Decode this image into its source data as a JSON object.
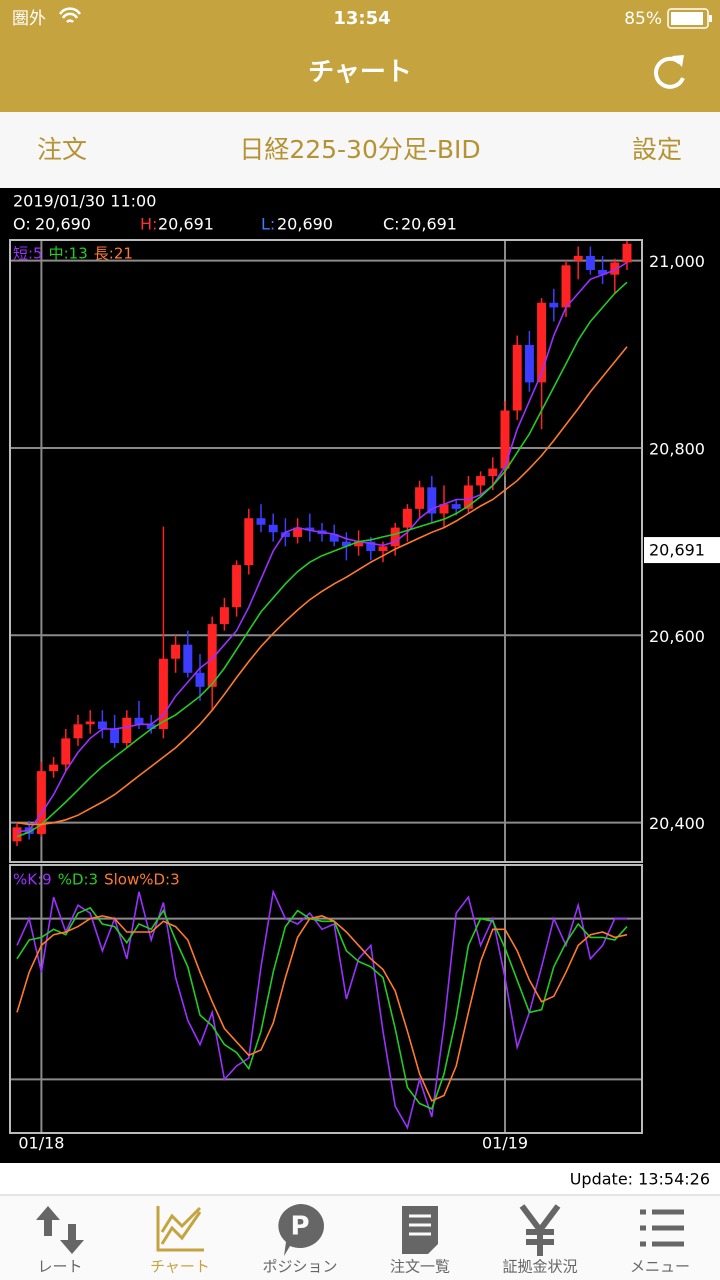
{
  "status_bar": {
    "carrier": "圏外",
    "time": "13:54",
    "battery": "85%"
  },
  "nav": {
    "title": "チャート"
  },
  "header": {
    "left": "注文",
    "title": "日経225-30分足-BID",
    "right": "設定"
  },
  "info": {
    "datetime": "2019/01/30 11:00",
    "open": {
      "label": "O:",
      "value": "20,690"
    },
    "high": {
      "label": "H:",
      "value": "20,691"
    },
    "low": {
      "label": "L:",
      "value": "20,690"
    },
    "close": {
      "label": "C:",
      "value": "20,691"
    }
  },
  "chart_data": [
    {
      "type": "candlestick",
      "categories": [
        null,
        null,
        "01/18",
        null,
        null,
        null,
        null,
        null,
        null,
        null,
        null,
        null,
        null,
        null,
        null,
        null,
        null,
        null,
        null,
        null,
        null,
        null,
        null,
        null,
        null,
        null,
        null,
        null,
        null,
        null,
        null,
        null,
        null,
        null,
        null,
        null,
        null,
        null,
        null,
        null,
        "01/19",
        null,
        null,
        null,
        null,
        null,
        null,
        null,
        null,
        null,
        null
      ],
      "open": [
        20380,
        20395,
        20388,
        20455,
        20462,
        20490,
        20505,
        20508,
        20500,
        20485,
        20512,
        20505,
        20500,
        20575,
        20590,
        20560,
        20545,
        20612,
        20630,
        20675,
        20725,
        20718,
        20710,
        20705,
        20715,
        20712,
        20708,
        20700,
        20695,
        20700,
        20690,
        20695,
        20715,
        20735,
        20758,
        20730,
        20740,
        20735,
        20760,
        20770,
        20778,
        20840,
        20910,
        20870,
        20955,
        20950,
        21000,
        21005,
        20990,
        20985,
        20998
      ],
      "high": [
        20400,
        20402,
        20465,
        20470,
        20500,
        20515,
        20520,
        20520,
        20515,
        20520,
        20530,
        20515,
        20716,
        20600,
        20605,
        20580,
        20620,
        20640,
        20680,
        20735,
        20740,
        20730,
        20725,
        20725,
        20730,
        20720,
        20718,
        20710,
        20712,
        20705,
        20700,
        20720,
        20740,
        20765,
        20770,
        20760,
        20745,
        20770,
        20775,
        20790,
        20850,
        20920,
        20925,
        20960,
        20970,
        21000,
        21015,
        21015,
        21005,
        21002,
        21022
      ],
      "low": [
        20375,
        20382,
        20385,
        20448,
        20455,
        20482,
        20495,
        20490,
        20480,
        20480,
        20500,
        20495,
        20490,
        20560,
        20555,
        20530,
        20520,
        20605,
        20620,
        20665,
        20710,
        20700,
        20695,
        20698,
        20700,
        20700,
        20695,
        20680,
        20685,
        20680,
        20678,
        20685,
        20700,
        20725,
        20720,
        20715,
        20728,
        20730,
        20750,
        20755,
        20770,
        20830,
        20860,
        20820,
        20935,
        20940,
        20980,
        20985,
        20975,
        20965,
        20990
      ],
      "close": [
        20395,
        20388,
        20455,
        20462,
        20490,
        20505,
        20508,
        20500,
        20485,
        20512,
        20505,
        20500,
        20575,
        20590,
        20560,
        20545,
        20612,
        20630,
        20675,
        20725,
        20718,
        20710,
        20705,
        20715,
        20712,
        20708,
        20700,
        20695,
        20700,
        20690,
        20695,
        20715,
        20735,
        20758,
        20730,
        20740,
        20735,
        20760,
        20770,
        20778,
        20840,
        20910,
        20870,
        20955,
        20950,
        20995,
        21005,
        20990,
        20985,
        20998,
        21018
      ],
      "up_color": "#ff2323",
      "down_color": "#3d3dff",
      "series": [
        {
          "name": "短:5",
          "color": "#9b30ff",
          "values": [
            20390,
            20392,
            20410,
            20430,
            20455,
            20475,
            20490,
            20500,
            20500,
            20502,
            20505,
            20505,
            20515,
            20535,
            20550,
            20565,
            20575,
            20590,
            20605,
            20630,
            20660,
            20690,
            20710,
            20715,
            20712,
            20710,
            20708,
            20703,
            20700,
            20698,
            20696,
            20700,
            20710,
            20725,
            20735,
            20740,
            20745,
            20745,
            20750,
            20760,
            20780,
            20820,
            20850,
            20880,
            20920,
            20950,
            20965,
            20980,
            20985,
            20990,
            20998
          ]
        },
        {
          "name": "中:13",
          "color": "#22cc22",
          "values": [
            20385,
            20390,
            20398,
            20410,
            20422,
            20435,
            20448,
            20460,
            20470,
            20480,
            20490,
            20500,
            20508,
            20515,
            20525,
            20535,
            20548,
            20565,
            20585,
            20605,
            20625,
            20640,
            20655,
            20668,
            20678,
            20685,
            20690,
            20695,
            20700,
            20702,
            20705,
            20708,
            20712,
            20716,
            20720,
            20724,
            20730,
            20738,
            20748,
            20760,
            20775,
            20795,
            20815,
            20840,
            20865,
            20890,
            20915,
            20935,
            20950,
            20965,
            20977
          ]
        },
        {
          "name": "長:21",
          "color": "#ff7a2a",
          "values": [
            20400,
            20398,
            20398,
            20400,
            20403,
            20408,
            20415,
            20422,
            20430,
            20440,
            20450,
            20460,
            20470,
            20480,
            20492,
            20505,
            20520,
            20537,
            20555,
            20572,
            20588,
            20602,
            20615,
            20627,
            20638,
            20647,
            20655,
            20662,
            20670,
            20678,
            20685,
            20692,
            20698,
            20704,
            20710,
            20715,
            20722,
            20730,
            20738,
            20745,
            20755,
            20765,
            20778,
            20792,
            20808,
            20825,
            20842,
            20860,
            20876,
            20892,
            20908
          ]
        }
      ],
      "ylim": [
        20358,
        21022
      ],
      "yticks": [
        {
          "value": 20400,
          "label": "20,400"
        },
        {
          "value": 20600,
          "label": "20,600"
        },
        {
          "value": 20800,
          "label": "20,800"
        },
        {
          "value": 21000,
          "label": "21,000"
        }
      ],
      "grid": true,
      "current_price": {
        "value": 20691,
        "label": "20,691"
      }
    },
    {
      "type": "line",
      "series": [
        {
          "name": "%K:9",
          "color": "#9b30ff",
          "values": [
            70,
            80,
            60,
            88,
            75,
            85,
            82,
            68,
            80,
            65,
            90,
            72,
            86,
            58,
            42,
            33,
            45,
            20,
            25,
            28,
            62,
            90,
            80,
            78,
            82,
            76,
            78,
            50,
            65,
            70,
            38,
            10,
            2,
            20,
            6,
            40,
            82,
            88,
            70,
            80,
            58,
            32,
            45,
            62,
            80,
            70,
            85,
            65,
            70,
            80,
            80
          ]
        },
        {
          "name": "%D:3",
          "color": "#22cc22",
          "values": [
            65,
            72,
            73,
            76,
            74,
            82,
            84,
            78,
            77,
            71,
            78,
            76,
            83,
            72,
            62,
            44,
            40,
            33,
            30,
            24,
            38,
            60,
            77,
            83,
            80,
            79,
            79,
            68,
            64,
            62,
            58,
            39,
            17,
            11,
            9,
            22,
            43,
            70,
            80,
            79,
            69,
            57,
            45,
            46,
            62,
            71,
            78,
            73,
            73,
            72,
            77
          ]
        },
        {
          "name": "Slow%D:3",
          "color": "#ff7a2a",
          "values": [
            45,
            60,
            70,
            74,
            75,
            77,
            80,
            81,
            80,
            75,
            75,
            75,
            79,
            77,
            72,
            60,
            49,
            39,
            34,
            29,
            31,
            41,
            58,
            73,
            80,
            81,
            79,
            75,
            70,
            65,
            61,
            53,
            38,
            22,
            12,
            14,
            25,
            45,
            64,
            76,
            76,
            68,
            57,
            49,
            51,
            60,
            70,
            74,
            75,
            73,
            74
          ]
        }
      ],
      "ylim": [
        0,
        100
      ],
      "yticks": [
        20,
        80
      ],
      "grid": true
    }
  ],
  "update": "Update: 13:54:26",
  "tabs": [
    "レート",
    "チャート",
    "ポジション",
    "注文一覧",
    "証拠金状況",
    "メニュー"
  ]
}
